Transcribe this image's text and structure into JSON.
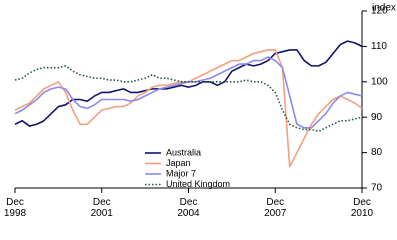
{
  "chart_data": {
    "type": "line",
    "y_label": "index",
    "x": [
      "Dec 1998",
      "Mar 1999",
      "Jun 1999",
      "Sep 1999",
      "Dec 1999",
      "Mar 2000",
      "Jun 2000",
      "Sep 2000",
      "Dec 2000",
      "Mar 2001",
      "Jun 2001",
      "Sep 2001",
      "Dec 2001",
      "Mar 2002",
      "Jun 2002",
      "Sep 2002",
      "Dec 2002",
      "Mar 2003",
      "Jun 2003",
      "Sep 2003",
      "Dec 2003",
      "Mar 2004",
      "Jun 2004",
      "Sep 2004",
      "Dec 2004",
      "Mar 2005",
      "Jun 2005",
      "Sep 2005",
      "Dec 2005",
      "Mar 2006",
      "Jun 2006",
      "Sep 2006",
      "Dec 2006",
      "Mar 2007",
      "Jun 2007",
      "Sep 2007",
      "Dec 2007",
      "Mar 2008",
      "Jun 2008",
      "Sep 2008",
      "Dec 2008",
      "Mar 2009",
      "Jun 2009",
      "Sep 2009",
      "Dec 2009",
      "Mar 2010",
      "Jun 2010",
      "Sep 2010",
      "Dec 2010"
    ],
    "series": [
      {
        "name": "Australia",
        "color": "#12126b",
        "dash": "solid",
        "values": [
          88,
          89,
          87.5,
          88,
          89,
          91,
          93,
          93.5,
          95,
          95,
          94.5,
          96,
          97,
          97,
          97.5,
          98,
          97,
          97,
          97.5,
          98,
          98,
          98,
          98.5,
          99,
          98.5,
          99,
          100,
          100,
          99,
          100,
          103,
          104,
          105,
          104.5,
          105,
          106,
          108,
          108.5,
          109,
          109,
          106,
          104.5,
          104.5,
          105.5,
          108,
          110.5,
          111.5,
          111,
          110
        ]
      },
      {
        "name": "Japan",
        "color": "#f2a07e",
        "dash": "solid",
        "values": [
          92,
          93,
          94,
          96,
          98,
          99,
          100,
          97,
          92,
          88,
          88,
          90,
          92,
          92.5,
          93,
          93,
          94,
          96,
          97,
          98.5,
          99,
          99,
          99.5,
          100,
          100,
          101,
          102,
          103,
          104,
          105,
          106,
          106,
          107,
          108,
          108.5,
          109,
          109,
          104,
          76,
          80,
          84,
          88,
          91,
          93,
          95,
          96,
          95,
          94,
          92.5
        ]
      },
      {
        "name": "Major 7",
        "color": "#8a8af0",
        "dash": "solid",
        "values": [
          91,
          92,
          93.5,
          95,
          97,
          98,
          98.5,
          98,
          95,
          93,
          92.5,
          93.5,
          95,
          95,
          95,
          95,
          94.5,
          95,
          96,
          97,
          98,
          98.5,
          99,
          99.5,
          100,
          100,
          100.5,
          101,
          102,
          103,
          104,
          105,
          105,
          106,
          106,
          107,
          106,
          104,
          96,
          88,
          87,
          87,
          89,
          91,
          94,
          96,
          97,
          96.5,
          96
        ]
      },
      {
        "name": "United Kingdom",
        "color": "#1d5a3c",
        "dash": "dotted",
        "values": [
          100.5,
          101,
          102.5,
          103.5,
          104,
          104,
          104,
          104.5,
          103,
          102,
          101.5,
          101,
          101,
          100.5,
          100.5,
          100,
          100,
          100.5,
          101,
          102,
          101,
          101,
          100.5,
          100,
          100,
          100,
          100,
          100,
          100,
          100,
          100,
          100,
          100.5,
          100,
          100,
          99,
          97,
          92,
          88,
          87,
          86.5,
          86.5,
          86,
          87,
          88,
          89,
          89,
          89.5,
          90
        ]
      }
    ],
    "ylim": [
      70,
      120
    ],
    "yticks": [
      70,
      80,
      90,
      100,
      110,
      120
    ],
    "xticks": [
      "Dec 1998",
      "Dec 2001",
      "Dec 2004",
      "Dec 2007",
      "Dec 2010"
    ],
    "grid": false,
    "legend": "bottom-center"
  }
}
